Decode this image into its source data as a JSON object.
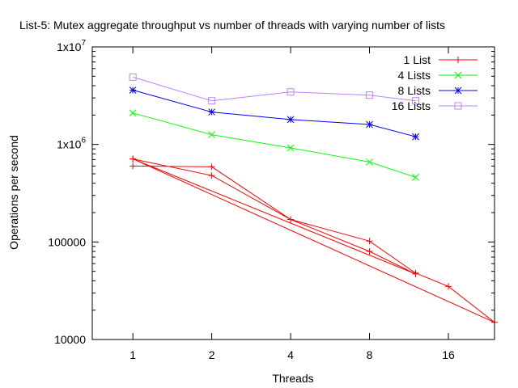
{
  "chart_data": {
    "type": "line",
    "title": "List-5: Mutex aggregate throughput vs number of threads with varying number of lists",
    "xlabel": "Threads",
    "ylabel": "Operations per second",
    "x_scale": "log2",
    "y_scale": "log10",
    "xlim": [
      0.7,
      24
    ],
    "ylim": [
      10000,
      10000000
    ],
    "x_ticks": [
      1,
      2,
      4,
      8,
      16
    ],
    "x_tick_labels": [
      "1",
      "2",
      "4",
      "8",
      "16"
    ],
    "y_ticks": [
      10000,
      100000,
      1000000,
      10000000
    ],
    "y_tick_labels": [
      {
        "base": "10000",
        "exp": ""
      },
      {
        "base": "100000",
        "exp": ""
      },
      {
        "base": "1x10",
        "exp": "6"
      },
      {
        "base": "1x10",
        "exp": "7"
      }
    ],
    "grid": false,
    "legend_position": "top-right",
    "series": [
      {
        "name": "1 List",
        "color": "#ff0000",
        "marker": "plus",
        "points": [
          {
            "x": 1,
            "y": 600000
          },
          {
            "x": 2,
            "y": 590000
          },
          {
            "x": 4,
            "y": 170000
          },
          {
            "x": 8,
            "y": 80000
          },
          {
            "x": 12,
            "y": 47000
          },
          {
            "x": 1,
            "y": 710000
          },
          {
            "x": 2,
            "y": 480000
          },
          {
            "x": 4,
            "y": 170000
          },
          {
            "x": 8,
            "y": 102000
          },
          {
            "x": 12,
            "y": 48000
          },
          {
            "x": 16,
            "y": 35000
          },
          {
            "x": 24,
            "y": 15000
          },
          {
            "x": 1,
            "y": 710000
          }
        ]
      },
      {
        "name": "4 Lists",
        "color": "#00ff00",
        "marker": "cross",
        "points": [
          {
            "x": 1,
            "y": 2100000
          },
          {
            "x": 2,
            "y": 1260000
          },
          {
            "x": 4,
            "y": 920000
          },
          {
            "x": 8,
            "y": 660000
          },
          {
            "x": 12,
            "y": 460000
          }
        ]
      },
      {
        "name": "8 Lists",
        "color": "#0000ff",
        "marker": "star",
        "points": [
          {
            "x": 1,
            "y": 3600000
          },
          {
            "x": 2,
            "y": 2150000
          },
          {
            "x": 4,
            "y": 1800000
          },
          {
            "x": 8,
            "y": 1600000
          },
          {
            "x": 12,
            "y": 1200000
          }
        ]
      },
      {
        "name": "16 Lists",
        "color": "#c080ff",
        "marker": "box",
        "points": [
          {
            "x": 1,
            "y": 4900000
          },
          {
            "x": 2,
            "y": 2800000
          },
          {
            "x": 4,
            "y": 3450000
          },
          {
            "x": 8,
            "y": 3200000
          },
          {
            "x": 12,
            "y": 2800000
          }
        ]
      }
    ]
  }
}
